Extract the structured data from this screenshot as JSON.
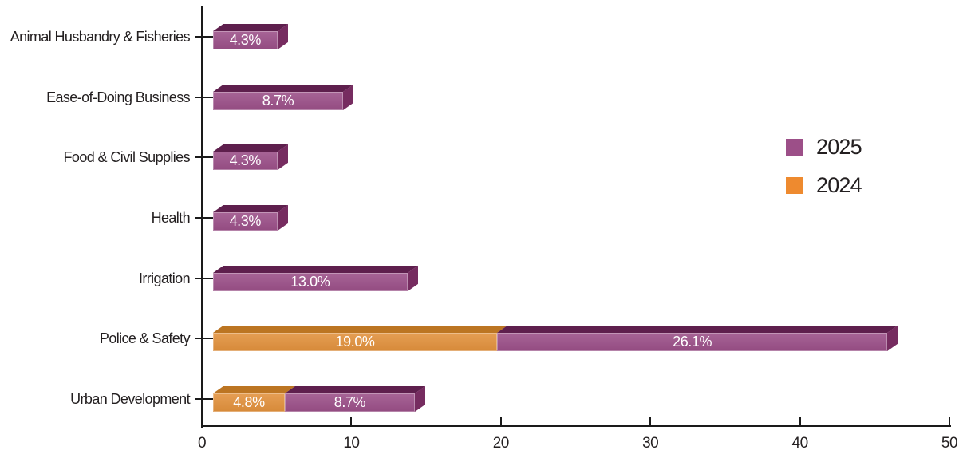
{
  "figure": {
    "background": "#ffffff",
    "axis_color": "#1a1a1a",
    "text_color": "#231f20",
    "bar_label_color": "#ffffff"
  },
  "chart_data": {
    "type": "bar",
    "orientation": "horizontal",
    "stacked": true,
    "title": "",
    "xlabel": "",
    "ylabel": "",
    "xlim": [
      0,
      50
    ],
    "xticks": [
      {
        "value": 0,
        "label": "0"
      },
      {
        "value": 10,
        "label": "10"
      },
      {
        "value": 20,
        "label": "20"
      },
      {
        "value": 30,
        "label": "30"
      },
      {
        "value": 40,
        "label": "40"
      },
      {
        "value": 50,
        "label": "50"
      }
    ],
    "grid": false,
    "categories": [
      "Animal Husbandry & Fisheries",
      "Ease-of-Doing Business",
      "Food & Civil Supplies",
      "Health",
      "Irrigation",
      "Police & Safety",
      "Urban Development"
    ],
    "series": [
      {
        "name": "2024",
        "color": "#e2913c",
        "color_top": "#bc7522",
        "color_side": "#c9812c",
        "values": [
          null,
          null,
          null,
          null,
          null,
          19.0,
          4.8
        ],
        "labels": [
          "",
          "",
          "",
          "",
          "",
          "19.0%",
          "4.8%"
        ]
      },
      {
        "name": "2025",
        "color": "#9b4f88",
        "color_top": "#5e1f4d",
        "color_side": "#762c60",
        "values": [
          4.3,
          8.7,
          4.3,
          4.3,
          13.0,
          26.1,
          8.7
        ],
        "labels": [
          "4.3%",
          "8.7%",
          "4.3%",
          "4.3%",
          "13.0%",
          "26.1%",
          "8.7%"
        ]
      }
    ],
    "legend_position": "upper-right",
    "legend": [
      {
        "label": "2025",
        "color": "#9c4f88"
      },
      {
        "label": "2024",
        "color": "#ee8a2f"
      }
    ]
  }
}
